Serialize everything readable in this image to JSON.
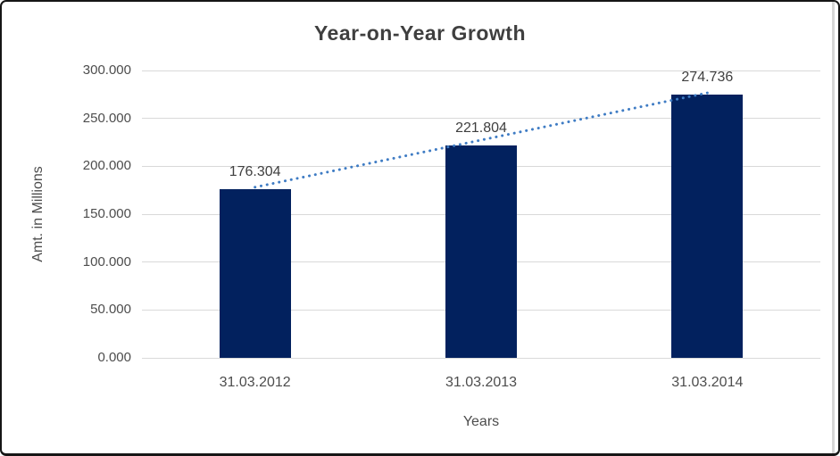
{
  "window": {
    "border_color": "#161616",
    "background": "#ffffff",
    "right_strip_color": "#d6d6d6"
  },
  "chart_data": {
    "type": "bar",
    "title": "Year-on-Year Growth",
    "xlabel": "Years",
    "ylabel": "Amt. in Millions",
    "categories": [
      "31.03.2012",
      "31.03.2013",
      "31.03.2014"
    ],
    "values": [
      176.304,
      221.804,
      274.736
    ],
    "value_labels": [
      "176.304",
      "221.804",
      "274.736"
    ],
    "ylim": [
      0,
      300
    ],
    "yticks": [
      {
        "value": 0,
        "label": "0.000"
      },
      {
        "value": 50,
        "label": "50.000"
      },
      {
        "value": 100,
        "label": "100.000"
      },
      {
        "value": 150,
        "label": "150.000"
      },
      {
        "value": 200,
        "label": "200.000"
      },
      {
        "value": 250,
        "label": "250.000"
      },
      {
        "value": 300,
        "label": "300.000"
      }
    ],
    "grid": true,
    "legend": "none",
    "bar_color": "#02215E",
    "gridline_color": "#D9D9D9",
    "label_color": "#3f3f3f",
    "tick_color": "#4d4d4d",
    "trendline": {
      "type": "linear",
      "style": "dotted",
      "color": "#3F7CC4",
      "from_category": 0,
      "to_category": 2
    }
  }
}
